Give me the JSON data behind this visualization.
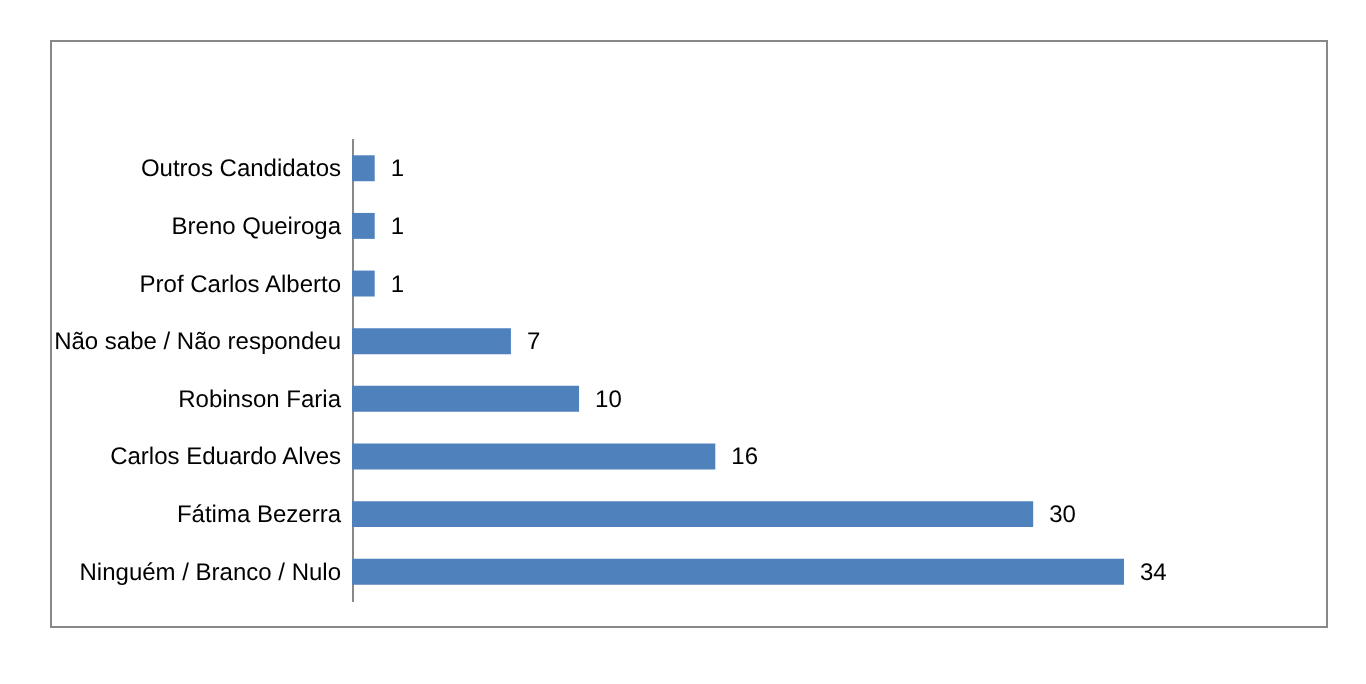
{
  "chart_data": {
    "type": "bar",
    "orientation": "horizontal",
    "categories": [
      "Outros Candidatos",
      "Breno Queiroga",
      "Prof Carlos Alberto",
      "Não sabe / Não respondeu",
      "Robinson Faria",
      "Carlos Eduardo Alves",
      "Fátima Bezerra",
      "Ninguém / Branco / Nulo"
    ],
    "values": [
      1,
      1,
      1,
      7,
      10,
      16,
      30,
      34
    ],
    "color": "#4f81bd",
    "data_labels": true
  }
}
